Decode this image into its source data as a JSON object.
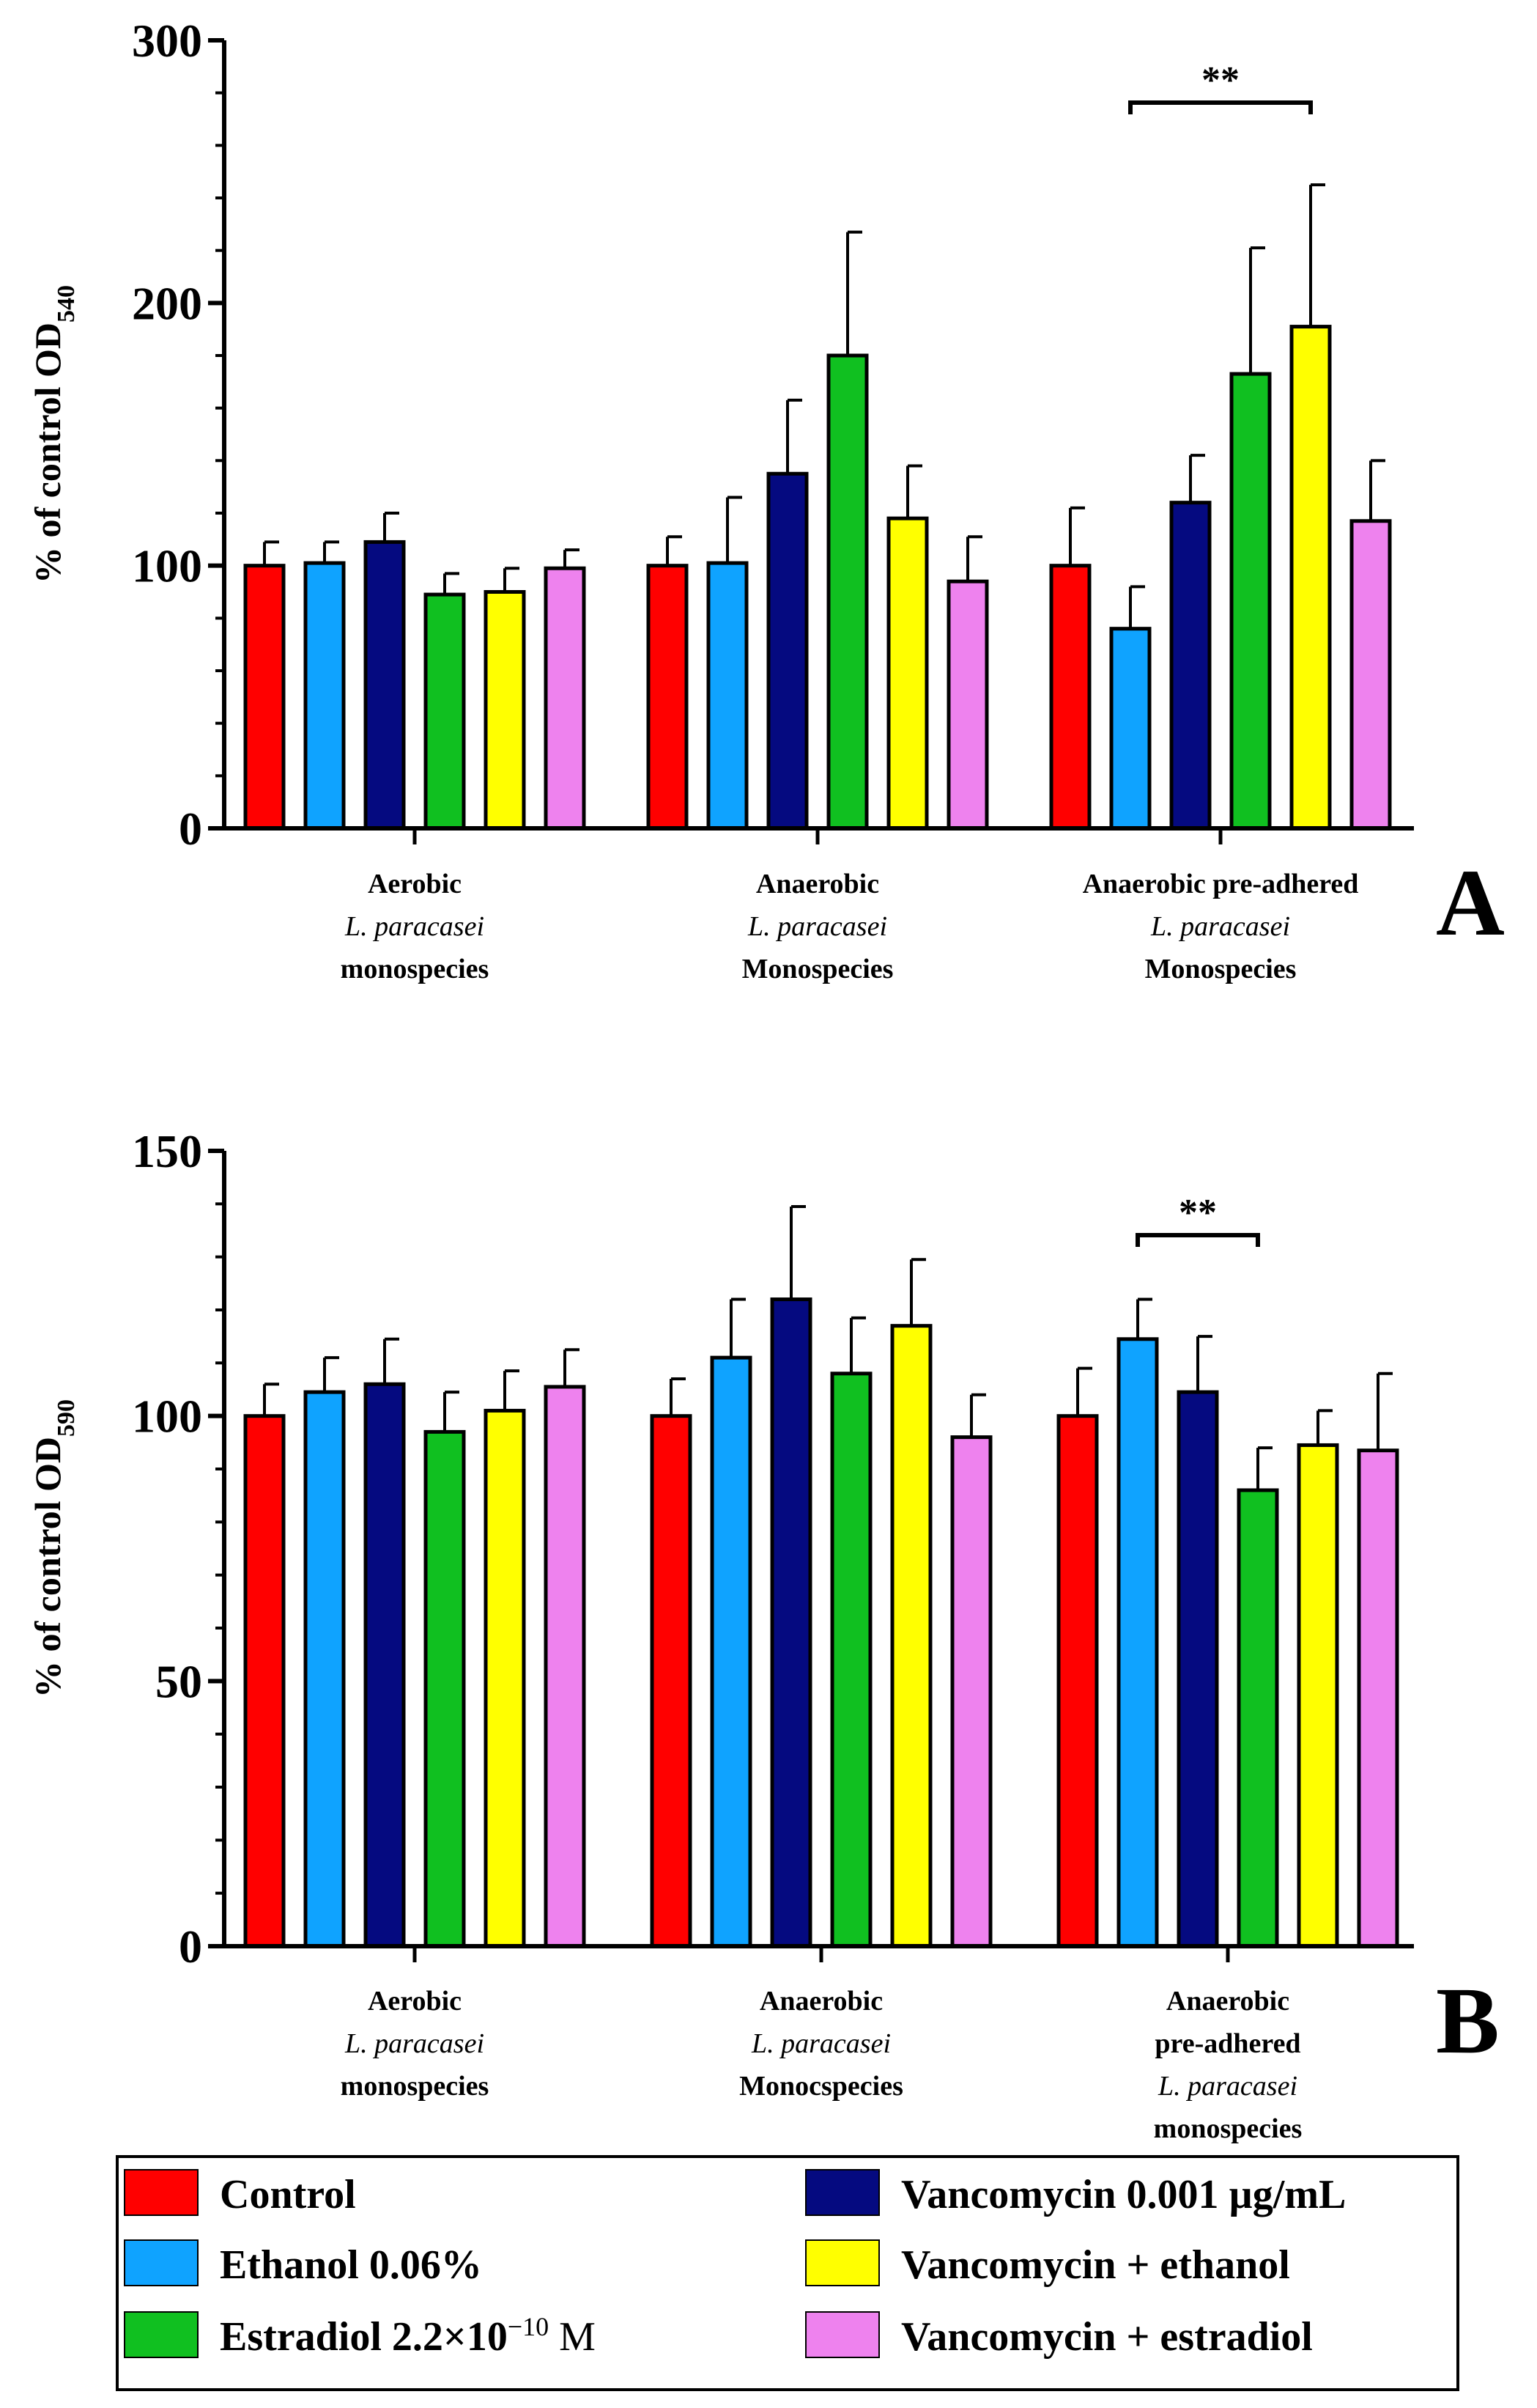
{
  "chart_data": [
    {
      "type": "bar",
      "panel_label": "A",
      "ylabel": "% of control OD",
      "ylabel_subscript": "540",
      "ylim": [
        0,
        300
      ],
      "yticks": [
        "0",
        "100",
        "200",
        "300"
      ],
      "groups": [
        {
          "lines": [
            {
              "text": "Aerobic",
              "italic": false
            },
            {
              "text": "L. paracasei",
              "italic": true
            },
            {
              "text": "monospecies",
              "italic": false
            }
          ]
        },
        {
          "lines": [
            {
              "text": "Anaerobic",
              "italic": false
            },
            {
              "text": "L. paracasei",
              "italic": true
            },
            {
              "text": "Monospecies",
              "italic": false
            }
          ]
        },
        {
          "lines": [
            {
              "text": "Anaerobic pre-adhered",
              "italic": false
            },
            {
              "text": "L. paracasei",
              "italic": true
            },
            {
              "text": "Monospecies",
              "italic": false
            }
          ]
        }
      ],
      "series": [
        {
          "name": "Control",
          "values": [
            100,
            100,
            100
          ],
          "errors": [
            9,
            11,
            22
          ]
        },
        {
          "name": "Ethanol 0.06%",
          "values": [
            101,
            101,
            76
          ],
          "errors": [
            8,
            25,
            16
          ]
        },
        {
          "name": "Vancomycin 0.001 µg/mL",
          "values": [
            109,
            135,
            124
          ],
          "errors": [
            11,
            28,
            18
          ]
        },
        {
          "name": "Estradiol 2.2×10−10 M",
          "values": [
            89,
            180,
            173
          ],
          "errors": [
            8,
            47,
            48
          ]
        },
        {
          "name": "Vancomycin + ethanol",
          "values": [
            90,
            118,
            191
          ],
          "errors": [
            9,
            20,
            54
          ]
        },
        {
          "name": "Vancomycin + estradiol",
          "values": [
            99,
            94,
            117
          ],
          "errors": [
            7,
            17,
            23
          ]
        }
      ],
      "significance": {
        "label": "**",
        "group": 2,
        "from_series": 1,
        "to_series": 4
      }
    },
    {
      "type": "bar",
      "panel_label": "B",
      "ylabel": "% of control OD",
      "ylabel_subscript": "590",
      "ylim": [
        0,
        150
      ],
      "yticks": [
        "0",
        "50",
        "100",
        "150"
      ],
      "groups": [
        {
          "lines": [
            {
              "text": "Aerobic",
              "italic": false
            },
            {
              "text": "L. paracasei",
              "italic": true
            },
            {
              "text": "monospecies",
              "italic": false
            }
          ]
        },
        {
          "lines": [
            {
              "text": "Anaerobic",
              "italic": false
            },
            {
              "text": "L. paracasei",
              "italic": true
            },
            {
              "text": "Monocspecies",
              "italic": false
            }
          ]
        },
        {
          "lines": [
            {
              "text": "Anaerobic",
              "italic": false
            },
            {
              "text": "pre-adhered",
              "italic": false
            },
            {
              "text": "L. paracasei",
              "italic": true
            },
            {
              "text": "monospecies",
              "italic": false
            }
          ]
        }
      ],
      "series": [
        {
          "name": "Control",
          "values": [
            100,
            100,
            100
          ],
          "errors": [
            6,
            7,
            9
          ]
        },
        {
          "name": "Ethanol 0.06%",
          "values": [
            104.5,
            111,
            114.5
          ],
          "errors": [
            6.5,
            11,
            7.5
          ]
        },
        {
          "name": "Vancomycin 0.001 µg/mL",
          "values": [
            106,
            122,
            104.5
          ],
          "errors": [
            8.5,
            17.5,
            10.5
          ]
        },
        {
          "name": "Estradiol 2.2×10−10 M",
          "values": [
            97,
            108,
            86
          ],
          "errors": [
            7.5,
            10.5,
            8
          ]
        },
        {
          "name": "Vancomycin + ethanol",
          "values": [
            101,
            117,
            94.5
          ],
          "errors": [
            7.5,
            12.5,
            6.5
          ]
        },
        {
          "name": "Vancomycin + estradiol",
          "values": [
            105.5,
            96,
            93.5
          ],
          "errors": [
            7,
            8,
            14.5
          ]
        }
      ],
      "significance": {
        "label": "**",
        "group": 2,
        "from_series": 1,
        "to_series": 3
      }
    }
  ],
  "legend": {
    "items": [
      {
        "label": "Control",
        "color": "#ff0000"
      },
      {
        "label": "Ethanol 0.06%",
        "color": "#0fa3ff"
      },
      {
        "label": "Estradiol 2.2×10",
        "superscript": "−10",
        "suffix": " M",
        "color": "#10c020"
      },
      {
        "label": "Vancomycin 0.001 µg/mL",
        "color": "#050a80"
      },
      {
        "label": "Vancomycin + ethanol",
        "color": "#ffff00"
      },
      {
        "label": "Vancomycin + estradiol",
        "color": "#ee82ee"
      }
    ]
  }
}
